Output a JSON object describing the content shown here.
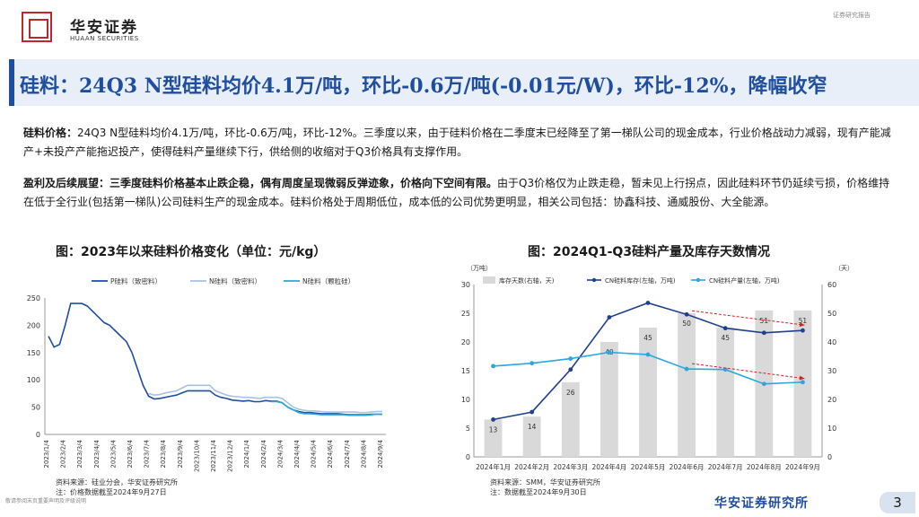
{
  "header": {
    "logo_cn": "华安证券",
    "logo_en": "HUAAN SECURITIES",
    "report_tag": "证券研究报告"
  },
  "title": "硅料：24Q3 N型硅料均价4.1万/吨，环比-0.6万/吨(-0.01元/W)，环比-12%，降幅收窄",
  "para1": {
    "lead": "硅料价格：",
    "body": "24Q3 N型硅料均价4.1万/吨，环比-0.6万/吨，环比-12%。三季度以来，由于硅料价格在二季度末已经降至了第一梯队公司的现金成本，行业价格战动力减弱，现有产能减产+未投产产能拖迟投产，使得硅料产量继续下行，供给侧的收缩对于Q3价格具有支撑作用。"
  },
  "para2": {
    "lead": "盈利及后续展望：三季度硅料价格基本止跌企稳，偶有周度呈现微弱反弹迹象，价格向下空间有限。",
    "body": "由于Q3价格仅为止跌走稳，暂未见上行拐点，因此硅料环节仍延续亏损，价格维持在低于全行业(包括第一梯队)公司硅料生产的现金成本。硅料价格处于周期低位，成本低的公司优势更明显，相关公司包括：协鑫科技、通威股份、大全能源。"
  },
  "fig1": {
    "title": "图：2023年以来硅料价格变化（单位：元/kg）",
    "source": "资料来源：硅业分会，华安证券研究所",
    "note": "注：价格数据截至2024年9月27日"
  },
  "fig2": {
    "title": "图：2024Q1-Q3硅料产量及库存天数情况",
    "source": "资料来源：SMM，华安证券研究所",
    "note": "注：数据截至2024年9月30日"
  },
  "chart_data": [
    {
      "type": "line",
      "title": "图：2023年以来硅料价格变化（单位：元/kg）",
      "ylim": [
        0,
        250
      ],
      "yticks": [
        "0",
        "50",
        "100",
        "150",
        "200",
        "250"
      ],
      "x_labels": [
        "2023/1/4",
        "2023/2/4",
        "2023/3/4",
        "2023/4/4",
        "2023/5/4",
        "2023/6/4",
        "2023/7/4",
        "2023/8/4",
        "2023/9/4",
        "2023/10/4",
        "2023/11/4",
        "2023/12/4",
        "2024/1/4",
        "2024/2/4",
        "2024/3/4",
        "2024/4/4",
        "2024/5/4",
        "2024/6/4",
        "2024/7/4",
        "2024/8/4",
        "2024/9/4"
      ],
      "series": [
        {
          "name": "P硅料（致密料）",
          "color": "#1f4e9e",
          "values": [
            180,
            160,
            165,
            200,
            240,
            240,
            240,
            235,
            225,
            215,
            205,
            200,
            190,
            180,
            170,
            150,
            120,
            90,
            70,
            65,
            66,
            68,
            70,
            72,
            76,
            80,
            80,
            80,
            80,
            80,
            72,
            68,
            66,
            63,
            62,
            61,
            62,
            60,
            60,
            62,
            61,
            61,
            58,
            50,
            45,
            42,
            40,
            40,
            39,
            38,
            38,
            38,
            38,
            37,
            36,
            36,
            36,
            36,
            37,
            37,
            37
          ]
        },
        {
          "name": "N硅料（致密料）",
          "color": "#a8c0e6",
          "values": [
            null,
            null,
            null,
            null,
            null,
            null,
            null,
            null,
            null,
            null,
            null,
            null,
            null,
            null,
            null,
            null,
            null,
            null,
            75,
            72,
            73,
            76,
            78,
            80,
            85,
            90,
            90,
            90,
            90,
            90,
            80,
            76,
            72,
            70,
            69,
            68,
            68,
            67,
            66,
            68,
            68,
            68,
            66,
            58,
            50,
            46,
            44,
            43,
            43,
            42,
            41,
            41,
            41,
            41,
            41,
            41,
            40,
            40,
            41,
            42,
            42
          ]
        },
        {
          "name": "N硅料（颗粒硅）",
          "color": "#28a8e0",
          "values": [
            null,
            null,
            null,
            null,
            null,
            null,
            null,
            null,
            null,
            null,
            null,
            null,
            null,
            null,
            null,
            null,
            null,
            null,
            null,
            null,
            null,
            null,
            null,
            null,
            null,
            null,
            null,
            null,
            null,
            null,
            null,
            null,
            null,
            null,
            null,
            null,
            null,
            null,
            null,
            null,
            60,
            60,
            58,
            50,
            45,
            40,
            38,
            38,
            37,
            36,
            36,
            36,
            36,
            36,
            35,
            35,
            35,
            35,
            36,
            37,
            37
          ]
        }
      ]
    },
    {
      "type": "bar",
      "title": "图：2024Q1-Q3硅料产量及库存天数情况",
      "left_unit": "（万吨）",
      "right_unit": "（天）",
      "ylim_left": [
        0,
        30
      ],
      "ylim_right": [
        0,
        60
      ],
      "yticks_left": [
        "0",
        "5",
        "10",
        "15",
        "20",
        "25",
        "30"
      ],
      "yticks_right": [
        "0",
        "10",
        "20",
        "30",
        "40",
        "50",
        "60"
      ],
      "categories": [
        "2024年1月",
        "2024年2月",
        "2024年3月",
        "2024年4月",
        "2024年5月",
        "2024年6月",
        "2024年7月",
        "2024年8月",
        "2024年9月"
      ],
      "series": [
        {
          "name": "库存天数(右轴，天)",
          "type": "bar",
          "axis": "right",
          "color": "#d9d9d9",
          "values": [
            13,
            14,
            26,
            40,
            45,
            50,
            45,
            51,
            51
          ],
          "labels": [
            "13",
            "14",
            "26",
            "40",
            "45",
            "50",
            "45",
            "51",
            "51"
          ]
        },
        {
          "name": "CN硅料库存(左轴，万吨)",
          "type": "line",
          "axis": "left",
          "color": "#1f3f8f",
          "values": [
            6.5,
            7.8,
            15.2,
            24.3,
            26.8,
            24.8,
            22.4,
            21.6,
            22.0
          ]
        },
        {
          "name": "CN硅料产量(左轴，万吨)",
          "type": "line",
          "axis": "left",
          "color": "#28a8e0",
          "values": [
            15.8,
            16.3,
            17.1,
            18.2,
            17.8,
            15.3,
            15.2,
            12.7,
            13.0
          ]
        }
      ]
    }
  ],
  "footer": {
    "disclaimer": "敬请参阅末页重要声明及评级说明",
    "institute": "华安证券研究所",
    "page": "3"
  }
}
